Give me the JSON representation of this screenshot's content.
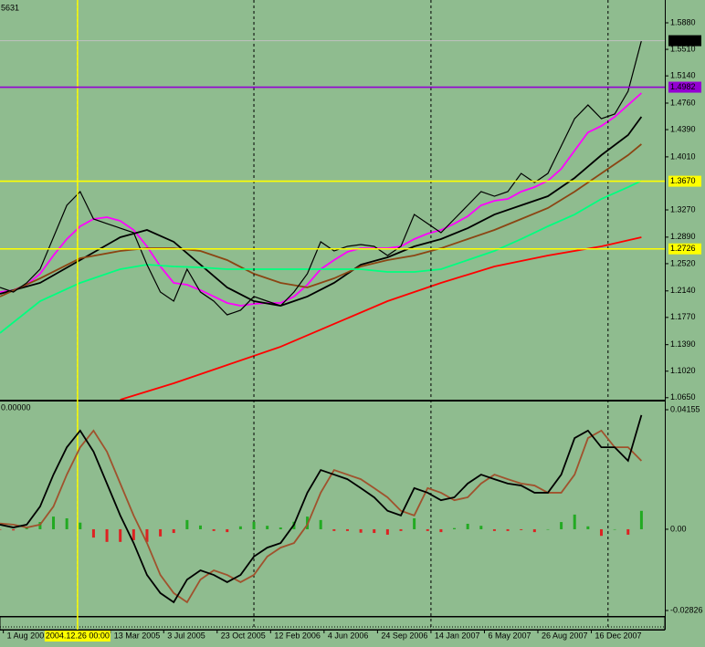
{
  "chart_data": [
    {
      "type": "line",
      "corner_label": "5631",
      "color": "#000000",
      "xlim": [
        0,
        199
      ],
      "ylim": [
        1.0622,
        1.6173
      ],
      "yticks": [
        {
          "value": 1.588,
          "label": "1.5880"
        },
        {
          "value": 1.551,
          "label": "1.5510"
        },
        {
          "value": 1.514,
          "label": "1.5140"
        },
        {
          "value": 1.476,
          "label": "1.4760"
        },
        {
          "value": 1.439,
          "label": "1.4390"
        },
        {
          "value": 1.401,
          "label": "1.4010"
        },
        {
          "value": 1.327,
          "label": "1.3270"
        },
        {
          "value": 1.289,
          "label": "1.2890"
        },
        {
          "value": 1.252,
          "label": "1.2520"
        },
        {
          "value": 1.214,
          "label": "1.2140"
        },
        {
          "value": 1.177,
          "label": "1.1770"
        },
        {
          "value": 1.139,
          "label": "1.1390"
        },
        {
          "value": 1.102,
          "label": "1.1020"
        },
        {
          "value": 1.065,
          "label": "1.0650"
        }
      ],
      "x": [
        0,
        4,
        8,
        12,
        16,
        20,
        24,
        28,
        32,
        36,
        40,
        44,
        48,
        52,
        56,
        60,
        64,
        68,
        72,
        76,
        80,
        84,
        88,
        92,
        96,
        100,
        104,
        108,
        112,
        116,
        120,
        124,
        128,
        132,
        136,
        140,
        144,
        148,
        152,
        156,
        160,
        164,
        168,
        172,
        176,
        180,
        184,
        188,
        192
      ],
      "values": [
        1.2188,
        1.2124,
        1.2252,
        1.2443,
        1.2888,
        1.3334,
        1.3525,
        1.3143,
        1.3079,
        1.3015,
        1.2952,
        1.2506,
        1.2124,
        1.1997,
        1.2443,
        1.2124,
        1.1997,
        1.1806,
        1.187,
        1.2061,
        1.1997,
        1.1933,
        1.2124,
        1.2379,
        1.2825,
        1.2697,
        1.2761,
        1.2786,
        1.2761,
        1.2634,
        1.2761,
        1.3206,
        1.3079,
        1.2952,
        1.3143,
        1.3334,
        1.3525,
        1.3461,
        1.3525,
        1.3779,
        1.3652,
        1.3779,
        1.4161,
        1.4543,
        1.4734,
        1.4543,
        1.4607,
        1.4925,
        1.5631
      ],
      "series": [
        {
          "color": "#ff00ff",
          "values": [
            1.2124,
            1.215,
            1.2226,
            1.2379,
            1.2634,
            1.2863,
            1.3041,
            1.3143,
            1.3168,
            1.3117,
            1.299,
            1.2761,
            1.2481,
            1.2252,
            1.2226,
            1.215,
            1.2061,
            1.1972,
            1.1933,
            1.1959,
            1.1972,
            1.1972,
            1.2061,
            1.2226,
            1.2443,
            1.257,
            1.2685,
            1.2735,
            1.2735,
            1.2735,
            1.2761,
            1.2863,
            1.2939,
            1.299,
            1.3079,
            1.3181,
            1.3334,
            1.3397,
            1.3423,
            1.3525,
            1.3588,
            1.3677,
            1.3843,
            1.4098,
            1.4352,
            1.4441,
            1.4569,
            1.4734,
            1.49
          ]
        },
        {
          "color": "#000000",
          "x": [
            0,
            12,
            24,
            36,
            44,
            52,
            60,
            68,
            76,
            84,
            92,
            100,
            108,
            116,
            124,
            132,
            140,
            148,
            156,
            164,
            172,
            180,
            188,
            192
          ],
          "values": [
            1.2099,
            1.2252,
            1.257,
            1.2888,
            1.299,
            1.2825,
            1.2506,
            1.2188,
            1.1997,
            1.1933,
            1.2061,
            1.2252,
            1.2506,
            1.2608,
            1.2761,
            1.2863,
            1.3015,
            1.3206,
            1.3334,
            1.3461,
            1.3716,
            1.4034,
            1.4314,
            1.4569
          ]
        },
        {
          "color": "#8b4513",
          "x": [
            0,
            12,
            24,
            36,
            44,
            52,
            60,
            68,
            76,
            84,
            92,
            100,
            108,
            116,
            124,
            132,
            140,
            148,
            156,
            164,
            172,
            180,
            188,
            192
          ],
          "values": [
            1.2061,
            1.2315,
            1.2595,
            1.2697,
            1.2735,
            1.2735,
            1.2697,
            1.257,
            1.2379,
            1.2252,
            1.2188,
            1.2315,
            1.2481,
            1.257,
            1.2634,
            1.2735,
            1.2863,
            1.299,
            1.3143,
            1.3296,
            1.3525,
            1.3779,
            1.4034,
            1.4187
          ]
        },
        {
          "color": "#00ff7f",
          "x": [
            0,
            12,
            24,
            36,
            44,
            52,
            60,
            68,
            76,
            84,
            92,
            100,
            108,
            116,
            124,
            132,
            140,
            148,
            156,
            164,
            172,
            180,
            188,
            192
          ],
          "values": [
            1.1552,
            1.1997,
            1.2252,
            1.2443,
            1.2506,
            1.2481,
            1.2468,
            1.2443,
            1.2443,
            1.2443,
            1.2443,
            1.2443,
            1.2443,
            1.2404,
            1.2404,
            1.2443,
            1.257,
            1.2697,
            1.2863,
            1.3041,
            1.3206,
            1.3423,
            1.3588,
            1.3677
          ]
        },
        {
          "color": "#ff0000",
          "x": [
            36,
            52,
            68,
            84,
            100,
            116,
            132,
            148,
            164,
            180,
            192
          ],
          "values": [
            1.0622,
            1.0851,
            1.1106,
            1.1361,
            1.1679,
            1.1997,
            1.2252,
            1.2481,
            1.2634,
            1.2761,
            1.2888
          ]
        }
      ],
      "levels": [
        {
          "value": 1.5631,
          "label": "1.5631",
          "color": "#000000",
          "line_color": "#c0c0c0"
        },
        {
          "value": 1.4982,
          "label": "1.4982",
          "color": "#9400d3",
          "line_color": "#9400d3"
        },
        {
          "value": 1.367,
          "label": "1.3670",
          "color": "#ffff00",
          "line_color": "#ffff00"
        },
        {
          "value": 1.2726,
          "label": "1.2726",
          "color": "#ffff00",
          "line_color": "#ffff00"
        }
      ],
      "separators": [
        23.2,
        76,
        129,
        182
      ],
      "crosshair_x": 23.2,
      "crosshair_color": "#ffff00"
    },
    {
      "type": "macd",
      "corner_label": "0.00000",
      "xlim": [
        0,
        199
      ],
      "ylim": [
        -0.03016,
        0.04441
      ],
      "yticks": [
        0.04155,
        {
          "value": 0,
          "label": "0.00"
        },
        -0.02826
      ],
      "x": [
        0,
        4,
        8,
        12,
        16,
        20,
        24,
        28,
        32,
        36,
        40,
        44,
        48,
        52,
        56,
        60,
        64,
        68,
        72,
        76,
        80,
        84,
        88,
        92,
        96,
        100,
        104,
        108,
        112,
        116,
        120,
        124,
        128,
        132,
        136,
        140,
        144,
        148,
        152,
        156,
        160,
        164,
        168,
        172,
        176,
        180,
        184,
        188,
        192
      ],
      "histogram": {
        "up_color": "#22aa22",
        "down_color": "#dd2222",
        "values": [
          -0.0002,
          -0.0004,
          0.0004,
          0.0025,
          0.0044,
          0.0038,
          0.0023,
          -0.0029,
          -0.0044,
          -0.0044,
          -0.0038,
          -0.0044,
          -0.0025,
          -0.0013,
          0.0032,
          0.0013,
          -0.0006,
          -0.001,
          0.001,
          0.0026,
          0.0012,
          0.0006,
          0.0026,
          0.0044,
          0.0032,
          -0.0006,
          -0.0006,
          -0.0012,
          -0.0013,
          -0.0019,
          -0.0006,
          0.0038,
          -0.0006,
          -0.001,
          0.0004,
          0.0019,
          0.0012,
          -0.0006,
          -0.0006,
          -0.0003,
          -0.001,
          0,
          0.0025,
          0.0051,
          0.001,
          -0.0023,
          0,
          -0.0019,
          0.0064
        ]
      },
      "series": [
        {
          "color": "#a0522d",
          "values": [
            0.002,
            0.0016,
            0.0006,
            0.0016,
            0.0079,
            0.019,
            0.0285,
            0.0343,
            0.027,
            0.0159,
            0.0048,
            -0.0048,
            -0.0159,
            -0.0222,
            -0.0254,
            -0.0175,
            -0.0143,
            -0.0159,
            -0.0184,
            -0.0159,
            -0.0095,
            -0.0064,
            -0.0048,
            0.0016,
            0.0127,
            0.0206,
            0.019,
            0.0174,
            0.0143,
            0.0111,
            0.0064,
            0.0048,
            0.0143,
            0.0127,
            0.0101,
            0.0111,
            0.0159,
            0.019,
            0.0174,
            0.0159,
            0.0152,
            0.0127,
            0.0127,
            0.019,
            0.0317,
            0.0343,
            0.0285,
            0.0285,
            0.0238
          ]
        },
        {
          "color": "#000000",
          "values": [
            0.0016,
            0.0006,
            0.0016,
            0.0079,
            0.019,
            0.0285,
            0.0343,
            0.027,
            0.0159,
            0.0048,
            -0.0048,
            -0.0159,
            -0.0222,
            -0.0254,
            -0.0175,
            -0.0143,
            -0.0159,
            -0.0184,
            -0.0159,
            -0.0095,
            -0.0064,
            -0.0048,
            0.0016,
            0.0127,
            0.0206,
            0.019,
            0.0174,
            0.0143,
            0.0111,
            0.0064,
            0.0048,
            0.0143,
            0.0127,
            0.0101,
            0.0111,
            0.0159,
            0.019,
            0.0174,
            0.0159,
            0.0152,
            0.0127,
            0.0127,
            0.019,
            0.0317,
            0.0343,
            0.0285,
            0.0285,
            0.0238,
            0.0397
          ]
        }
      ],
      "xticks": [
        {
          "value": 1,
          "label": "1 Aug 200"
        },
        {
          "value": 33,
          "label": "13 Mar 2005"
        },
        {
          "value": 49,
          "label": "3 Jul 2005"
        },
        {
          "value": 65,
          "label": "23 Oct 2005"
        },
        {
          "value": 81,
          "label": "12 Feb 2006"
        },
        {
          "value": 97,
          "label": "4 Jun 2006"
        },
        {
          "value": 113,
          "label": "24 Sep 2006"
        },
        {
          "value": 129,
          "label": "14 Jan 2007"
        },
        {
          "value": 145,
          "label": "6 May 2007"
        },
        {
          "value": 161,
          "label": "26 Aug 2007"
        },
        {
          "value": 177,
          "label": "16 Dec 2007"
        }
      ],
      "crosshair_label": "2004.12.26 00:00"
    }
  ]
}
